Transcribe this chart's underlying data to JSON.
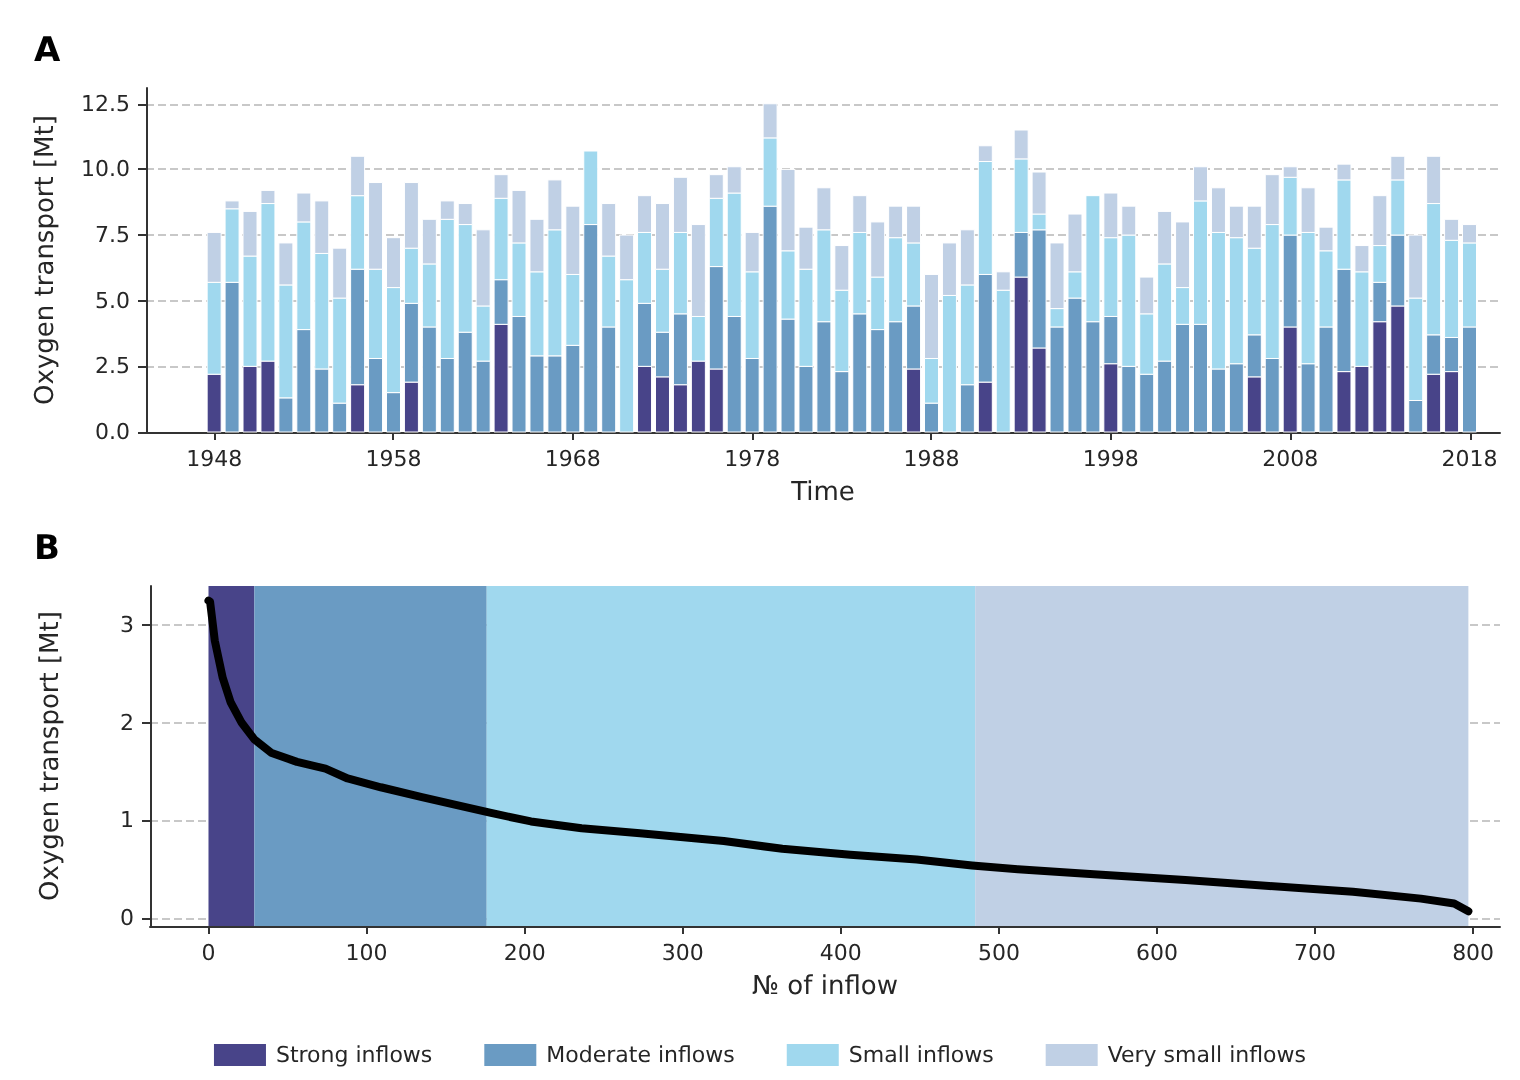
{
  "chart_data": [
    {
      "type": "bar",
      "title": "A",
      "xlabel": "Time",
      "ylabel": "Oxygen transport [Mt]",
      "stacked": true,
      "grid": "y",
      "legend": "bottom",
      "x": [
        1948,
        1949,
        1950,
        1951,
        1952,
        1953,
        1954,
        1955,
        1956,
        1957,
        1958,
        1959,
        1960,
        1961,
        1962,
        1963,
        1964,
        1965,
        1966,
        1967,
        1968,
        1969,
        1970,
        1971,
        1972,
        1973,
        1974,
        1975,
        1976,
        1977,
        1978,
        1979,
        1980,
        1981,
        1982,
        1983,
        1984,
        1985,
        1986,
        1987,
        1988,
        1989,
        1990,
        1991,
        1992,
        1993,
        1994,
        1995,
        1996,
        1997,
        1998,
        1999,
        2000,
        2001,
        2002,
        2003,
        2004,
        2005,
        2006,
        2007,
        2008,
        2009,
        2010,
        2011,
        2012,
        2013,
        2014,
        2015,
        2016,
        2017,
        2018
      ],
      "xlim": [
        1944.2,
        2019.7
      ],
      "xticks": [
        1948,
        1958,
        1968,
        1978,
        1988,
        1998,
        2008,
        2018
      ],
      "ylim": [
        0,
        13.1
      ],
      "yticks": [
        {
          "value": 0,
          "label": "0.0"
        },
        2.5,
        {
          "value": 5,
          "label": "5.0"
        },
        7.5,
        {
          "value": 10,
          "label": "10.0"
        },
        12.5
      ],
      "series": [
        {
          "name": "Strong inflows",
          "color": "#484489",
          "values": [
            2.2,
            0,
            2.5,
            2.7,
            0,
            0,
            0,
            0,
            1.8,
            0,
            0,
            1.9,
            0,
            0,
            0,
            0,
            4.1,
            0,
            0,
            0,
            0,
            0,
            0,
            0,
            2.5,
            2.1,
            1.8,
            2.7,
            2.4,
            0,
            0,
            0,
            0,
            0,
            0,
            0,
            0,
            0,
            0,
            2.4,
            0,
            0,
            0,
            1.9,
            0,
            5.9,
            3.2,
            0,
            0,
            0,
            2.6,
            0,
            0,
            0,
            0,
            0,
            0,
            0,
            2.1,
            0,
            4.0,
            0,
            0,
            2.3,
            2.5,
            4.2,
            4.8,
            0,
            2.2,
            2.3,
            0
          ]
        },
        {
          "name": "Moderate inflows",
          "color": "#6a9bc3",
          "values": [
            0,
            5.7,
            0,
            0,
            1.3,
            3.9,
            2.4,
            1.1,
            4.4,
            2.8,
            1.5,
            3.0,
            4.0,
            2.8,
            3.8,
            2.7,
            1.7,
            4.4,
            2.9,
            2.9,
            3.3,
            7.9,
            4.0,
            0,
            2.4,
            1.7,
            2.7,
            0,
            3.9,
            4.4,
            2.8,
            8.6,
            4.3,
            2.5,
            4.2,
            2.3,
            4.5,
            3.9,
            4.2,
            2.4,
            1.1,
            0,
            1.8,
            4.1,
            0,
            1.7,
            4.5,
            4.0,
            5.1,
            4.2,
            1.8,
            2.5,
            2.2,
            2.7,
            4.1,
            4.1,
            2.4,
            2.6,
            1.6,
            2.8,
            3.5,
            2.6,
            4.0,
            3.9,
            0,
            1.5,
            2.7,
            1.2,
            1.5,
            1.3,
            4.0
          ]
        },
        {
          "name": "Small inflows",
          "color": "#a0d8ee",
          "values": [
            3.5,
            2.8,
            4.2,
            6.0,
            4.3,
            4.1,
            4.4,
            4.0,
            2.8,
            3.4,
            4.0,
            2.1,
            2.4,
            5.3,
            4.1,
            2.1,
            3.1,
            2.8,
            3.2,
            4.8,
            2.7,
            2.8,
            2.7,
            5.8,
            2.7,
            2.4,
            3.1,
            1.7,
            2.6,
            4.7,
            3.3,
            2.6,
            2.6,
            3.7,
            3.5,
            3.1,
            3.1,
            2.0,
            3.2,
            2.4,
            1.7,
            5.2,
            3.8,
            4.3,
            5.4,
            2.8,
            0.6,
            0.7,
            1.0,
            4.8,
            3.0,
            5.0,
            2.3,
            3.7,
            1.4,
            4.7,
            5.2,
            4.8,
            3.3,
            5.1,
            2.2,
            5.0,
            2.9,
            3.4,
            3.6,
            1.4,
            2.1,
            3.9,
            5.0,
            3.7,
            3.2
          ]
        },
        {
          "name": "Very small inflows",
          "color": "#c0d0e5",
          "values": [
            1.9,
            0.3,
            1.7,
            0.5,
            1.6,
            1.1,
            2.0,
            1.9,
            1.5,
            3.3,
            1.9,
            2.5,
            1.7,
            0.7,
            0.8,
            2.9,
            0.9,
            2.0,
            2.0,
            1.9,
            2.6,
            0,
            2.0,
            1.7,
            1.4,
            2.5,
            2.1,
            3.5,
            0.9,
            1.0,
            1.5,
            1.3,
            3.1,
            1.6,
            1.6,
            1.7,
            1.4,
            2.1,
            1.2,
            1.4,
            3.2,
            2.0,
            2.1,
            0.6,
            0.7,
            1.1,
            1.6,
            2.5,
            2.2,
            0,
            1.7,
            1.1,
            1.4,
            2.0,
            2.5,
            1.3,
            1.7,
            1.2,
            1.6,
            1.9,
            0.4,
            1.7,
            0.9,
            0.6,
            1.0,
            1.9,
            0.9,
            2.4,
            1.8,
            0.8,
            0.7
          ]
        }
      ]
    },
    {
      "type": "line",
      "title": "B",
      "xlabel": "№ of inflow",
      "ylabel": "Oxygen transport [Mt]",
      "grid": "y",
      "marker": "none",
      "line_style": "solid",
      "xlim": [
        -37,
        817
      ],
      "xticks": [
        0,
        100,
        200,
        300,
        400,
        500,
        600,
        700,
        800
      ],
      "ylim": [
        -0.08,
        3.4
      ],
      "yticks": [
        0,
        1,
        2,
        3
      ],
      "bands": [
        {
          "axis": "x",
          "from": 0,
          "to": 29,
          "color": "#484489"
        },
        {
          "axis": "x",
          "from": 29,
          "to": 176,
          "color": "#6a9bc3"
        },
        {
          "axis": "x",
          "from": 176,
          "to": 485,
          "color": "#a0d8ee"
        },
        {
          "axis": "x",
          "from": 485,
          "to": 797,
          "color": "#c0d0e5"
        }
      ],
      "series": [
        {
          "color": "#000000",
          "x": [
            0,
            1,
            4,
            9,
            14,
            21,
            29,
            40,
            56,
            74,
            88,
            109,
            135,
            162,
            178,
            204,
            236,
            273,
            326,
            363,
            406,
            448,
            483,
            512,
            560,
            618,
            671,
            724,
            767,
            788,
            797
          ],
          "values": [
            3.25,
            3.24,
            2.84,
            2.46,
            2.21,
            2.0,
            1.83,
            1.69,
            1.6,
            1.53,
            1.43,
            1.34,
            1.24,
            1.14,
            1.08,
            0.99,
            0.92,
            0.87,
            0.79,
            0.71,
            0.65,
            0.6,
            0.54,
            0.5,
            0.45,
            0.39,
            0.33,
            0.27,
            0.2,
            0.15,
            0.07
          ]
        }
      ]
    }
  ]
}
